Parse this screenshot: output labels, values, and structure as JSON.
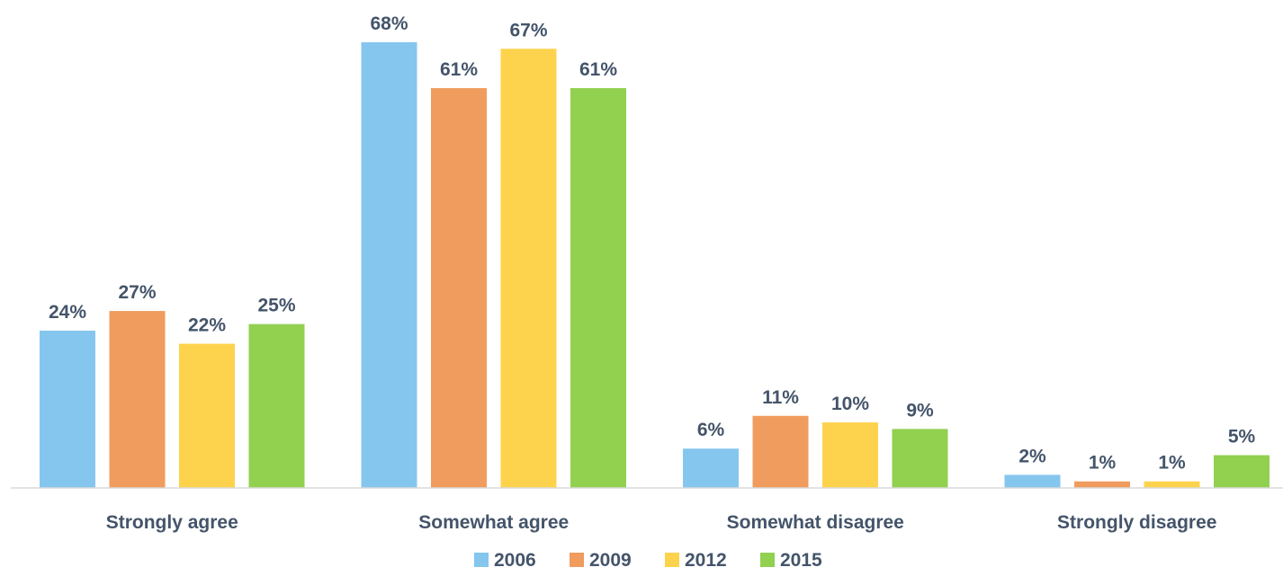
{
  "chart_data": {
    "type": "bar",
    "categories": [
      "Strongly agree",
      "Somewhat agree",
      "Somewhat disagree",
      "Strongly disagree"
    ],
    "series": [
      {
        "name": "2006",
        "values": [
          24,
          68,
          6,
          2
        ],
        "labels": [
          "24%",
          "68%",
          "6%",
          "2%"
        ],
        "color": "#85c6ef"
      },
      {
        "name": "2009",
        "values": [
          27,
          61,
          11,
          1
        ],
        "labels": [
          "27%",
          "61%",
          "11%",
          "1%"
        ],
        "color": "#f09c5e"
      },
      {
        "name": "2012",
        "values": [
          22,
          67,
          10,
          1
        ],
        "labels": [
          "22%",
          "67%",
          "10%",
          "1%"
        ],
        "color": "#fdd34d"
      },
      {
        "name": "2015",
        "values": [
          25,
          61,
          9,
          5
        ],
        "labels": [
          "25%",
          "61%",
          "9%",
          "5%"
        ],
        "color": "#92d050"
      }
    ],
    "title": "",
    "xlabel": "",
    "ylabel": "",
    "ylim": [
      0,
      68
    ],
    "grid": false,
    "legend_position": "bottom",
    "label_color": "#44546a",
    "axis_color": "#d9d9d9"
  }
}
